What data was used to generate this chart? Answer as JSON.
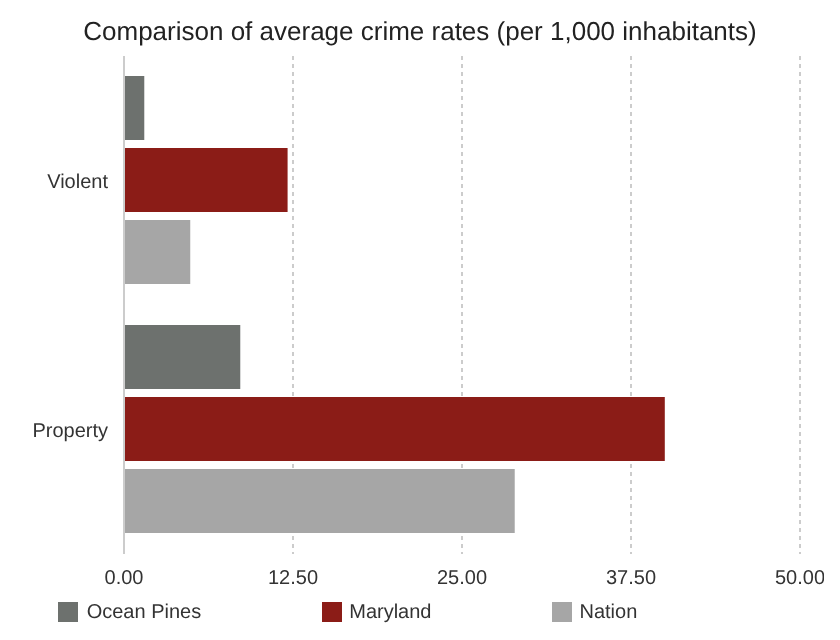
{
  "chart_data": {
    "type": "bar",
    "orientation": "horizontal",
    "title": "Comparison of average crime rates (per 1,000 inhabitants)",
    "categories": [
      "Violent",
      "Property"
    ],
    "series": [
      {
        "name": "Ocean Pines",
        "color": "#6d716e",
        "values": [
          1.5,
          8.6
        ]
      },
      {
        "name": "Maryland",
        "color": "#8b1c17",
        "values": [
          12.1,
          40.0
        ]
      },
      {
        "name": "Nation",
        "color": "#a6a6a6",
        "values": [
          4.9,
          28.9
        ]
      }
    ],
    "xlim": [
      0,
      50
    ],
    "xticks": [
      {
        "value": 0,
        "label": "0.00"
      },
      {
        "value": 12.5,
        "label": "12.50"
      },
      {
        "value": 25,
        "label": "25.00"
      },
      {
        "value": 37.5,
        "label": "37.50"
      },
      {
        "value": 50,
        "label": "50.00"
      }
    ],
    "grid": "x",
    "legend": "bottom"
  }
}
